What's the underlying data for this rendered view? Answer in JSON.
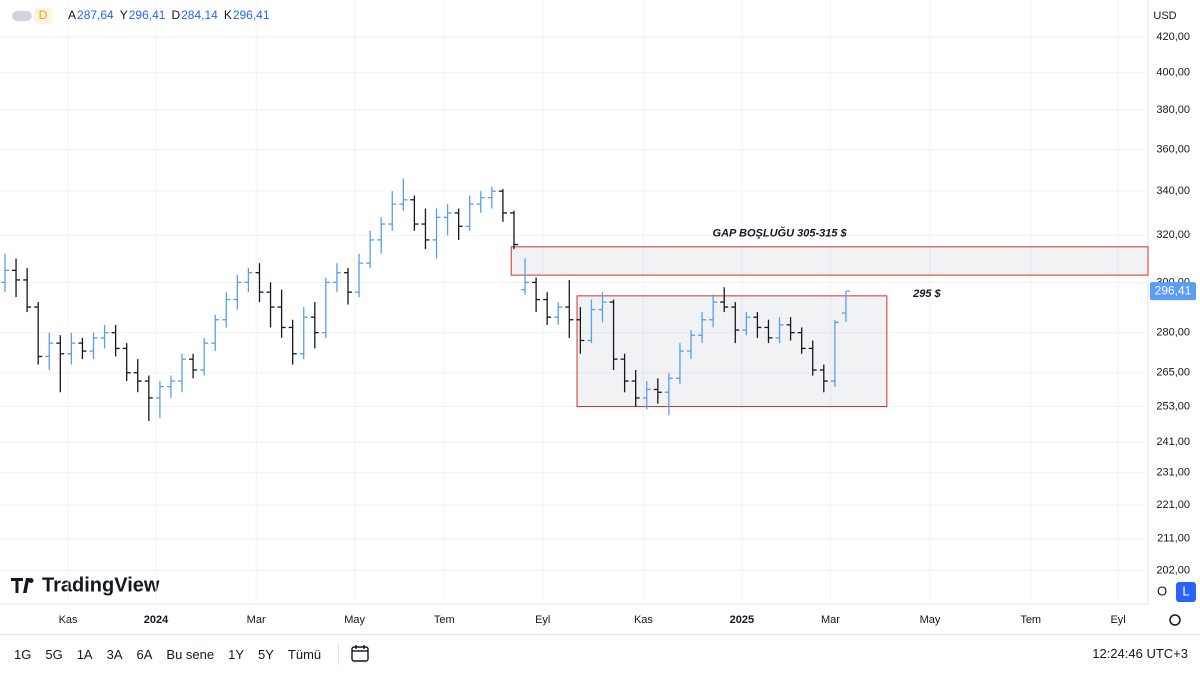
{
  "chart_data": {
    "type": "ohlc",
    "header": {
      "interval": "D",
      "fields": [
        {
          "label": "A",
          "value": "287,64"
        },
        {
          "label": "Y",
          "value": "296,41"
        },
        {
          "label": "D",
          "value": "284,14"
        },
        {
          "label": "K",
          "value": "296,41"
        }
      ]
    },
    "currency": "USD",
    "up_color": "#5b9cf6",
    "down_color": "#131722",
    "open": [
      300,
      305,
      301,
      290,
      271,
      276,
      272,
      276,
      273,
      278,
      280,
      274,
      265,
      262,
      256,
      260,
      262,
      270,
      266,
      276,
      285,
      293,
      300,
      304,
      296,
      290,
      282,
      272,
      286,
      280,
      300,
      304,
      296,
      308,
      318,
      325,
      334,
      336,
      325,
      318,
      328,
      330,
      324,
      334,
      337,
      340,
      330,
      297,
      300,
      293,
      286,
      290,
      285,
      277,
      289,
      292,
      270,
      262,
      256,
      259,
      258,
      263,
      273,
      279,
      285,
      292,
      290,
      281,
      286,
      282,
      278,
      283,
      280,
      274,
      266,
      262,
      287.64
    ],
    "high": [
      312,
      310,
      306,
      292,
      280,
      279,
      280,
      278,
      280,
      283,
      283,
      276,
      270,
      264,
      262,
      264,
      272,
      272,
      278,
      287,
      296,
      303,
      306,
      308,
      300,
      297,
      285,
      290,
      292,
      302,
      308,
      306,
      312,
      322,
      328,
      340,
      346,
      338,
      332,
      332,
      334,
      332,
      338,
      340,
      342,
      341,
      331,
      310,
      302,
      296,
      292,
      301,
      290,
      293,
      296,
      293,
      272,
      266,
      262,
      263,
      265,
      276,
      281,
      288,
      295,
      298,
      292,
      288,
      288,
      285,
      286,
      286,
      282,
      277,
      268,
      285,
      296.41
    ],
    "low": [
      296,
      294,
      288,
      268,
      266,
      258,
      268,
      270,
      270,
      274,
      271,
      262,
      258,
      248,
      249,
      256,
      258,
      263,
      264,
      273,
      282,
      289,
      296,
      292,
      282,
      278,
      268,
      270,
      274,
      278,
      296,
      291,
      294,
      306,
      312,
      322,
      331,
      322,
      314,
      310,
      320,
      318,
      322,
      330,
      332,
      326,
      314,
      295,
      288,
      283,
      283,
      278,
      272,
      276,
      284,
      266,
      258,
      253,
      252,
      254,
      250,
      261,
      270,
      276,
      282,
      288,
      276,
      279,
      278,
      276,
      276,
      277,
      272,
      264,
      258,
      260,
      284.14
    ],
    "close": [
      305,
      301,
      290,
      271,
      276,
      272,
      276,
      273,
      278,
      280,
      274,
      265,
      262,
      256,
      260,
      262,
      270,
      266,
      276,
      285,
      293,
      300,
      304,
      296,
      290,
      282,
      272,
      286,
      280,
      300,
      304,
      296,
      308,
      318,
      325,
      334,
      336,
      325,
      318,
      328,
      330,
      324,
      334,
      337,
      340,
      330,
      316,
      300,
      293,
      286,
      290,
      285,
      277,
      289,
      292,
      270,
      262,
      256,
      259,
      258,
      263,
      273,
      279,
      285,
      292,
      290,
      281,
      286,
      282,
      278,
      283,
      280,
      274,
      266,
      262,
      284,
      296.41
    ],
    "last_price_label": "296,41",
    "xlim": [
      -0.45,
      103.3
    ],
    "xticks": [
      {
        "value": 5.7,
        "label": "Kas"
      },
      {
        "value": 13.65,
        "label": "2024",
        "bold": true
      },
      {
        "value": 22.7,
        "label": "Mar"
      },
      {
        "value": 31.6,
        "label": "May"
      },
      {
        "value": 39.7,
        "label": "Tem"
      },
      {
        "value": 48.6,
        "label": "Eyl"
      },
      {
        "value": 57.7,
        "label": "Kas"
      },
      {
        "value": 66.6,
        "label": "2025",
        "bold": true
      },
      {
        "value": 74.6,
        "label": "Mar"
      },
      {
        "value": 83.6,
        "label": "May"
      },
      {
        "value": 92.7,
        "label": "Tem"
      },
      {
        "value": 100.6,
        "label": "Eyl"
      }
    ],
    "ylim": [
      194,
      442
    ],
    "log_scale": true,
    "grid": true,
    "yticks": [
      {
        "value": 202,
        "label": "202,00"
      },
      {
        "value": 211,
        "label": "211,00"
      },
      {
        "value": 221,
        "label": "221,00"
      },
      {
        "value": 231,
        "label": "231,00"
      },
      {
        "value": 241,
        "label": "241,00"
      },
      {
        "value": 253,
        "label": "253,00"
      },
      {
        "value": 265,
        "label": "265,00"
      },
      {
        "value": 280,
        "label": "280,00"
      },
      {
        "value": 300,
        "label": "300,00"
      },
      {
        "value": 320,
        "label": "320,00"
      },
      {
        "value": 340,
        "label": "340,00"
      },
      {
        "value": 360,
        "label": "360,00"
      },
      {
        "value": 380,
        "label": "380,00"
      },
      {
        "value": 400,
        "label": "400,00"
      },
      {
        "value": 420,
        "label": "420,00"
      }
    ],
    "zones": [
      {
        "x_start": 45.75,
        "x_end": 103.3,
        "low": 303,
        "high": 315,
        "text": "GAP BOŞLUĞU  305-315 $"
      },
      {
        "x_start": 51.7,
        "x_end": 79.7,
        "low": 253,
        "high": 294.5,
        "text": "295 $"
      }
    ]
  },
  "ui": {
    "brand": "TradingView",
    "ranges": [
      "1G",
      "5G",
      "1A",
      "3A",
      "6A",
      "Bu sene",
      "1Y",
      "5Y",
      "Tümü"
    ],
    "clock": "12:24:46 UTC+3",
    "axis_buttons": [
      "O",
      "L"
    ]
  }
}
